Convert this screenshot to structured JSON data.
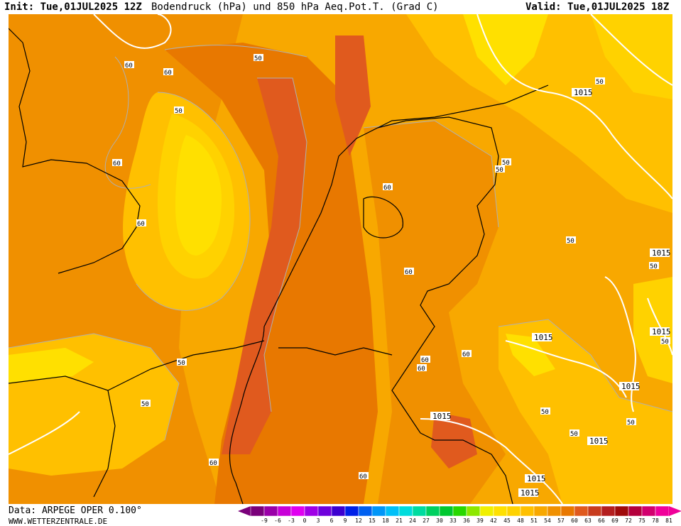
{
  "header": {
    "init": "Init: Tue,01JUL2025 12Z",
    "title": "Bodendruck (hPa) und 850 hPa Aeq.Pot.T. (Grad C)",
    "valid": "Valid: Tue,01JUL2025 18Z"
  },
  "footer": {
    "data_source": "Data: ARPEGE OPER 0.100°",
    "website": "WWW.WETTERZENTRALE.DE"
  },
  "map": {
    "isobar_labels": [
      "1015",
      "1015",
      "1015",
      "1015",
      "1015",
      "1015",
      "1015",
      "1015",
      "1015"
    ],
    "theta_labels": [
      "60",
      "60",
      "50",
      "60",
      "60",
      "50",
      "60",
      "60",
      "60",
      "60",
      "50",
      "50",
      "50",
      "60",
      "50",
      "50",
      "50",
      "50",
      "50",
      "50",
      "50",
      "60",
      "60",
      "50"
    ]
  },
  "scale": {
    "labels": [
      "-9",
      "-6",
      "-3",
      "0",
      "3",
      "6",
      "9",
      "12",
      "15",
      "18",
      "21",
      "24",
      "27",
      "30",
      "33",
      "36",
      "39",
      "42",
      "45",
      "48",
      "51",
      "54",
      "57",
      "60",
      "63",
      "66",
      "69",
      "72",
      "75",
      "78",
      "81"
    ],
    "colors": [
      "#7a007a",
      "#9a00a8",
      "#c800d8",
      "#e000f0",
      "#a000e6",
      "#6e00dc",
      "#3c00d0",
      "#0020e8",
      "#0060f0",
      "#0096f8",
      "#00c0f8",
      "#00dcdc",
      "#00dca0",
      "#00d060",
      "#00c830",
      "#28d800",
      "#8ce800",
      "#f0f000",
      "#ffe000",
      "#ffd200",
      "#ffc000",
      "#f8a800",
      "#f09000",
      "#e87800",
      "#e05a1e",
      "#c83c1e",
      "#b41e1e",
      "#a00a0a",
      "#b4003c",
      "#d2006e",
      "#f0009a"
    ],
    "left_arrow_color": "#7a007a",
    "right_arrow_color": "#f0009a"
  },
  "colors": {
    "band_45": "#ffe000",
    "band_48": "#ffd200",
    "band_51": "#ffc000",
    "band_54": "#f8a800",
    "band_57": "#f09000",
    "band_60": "#e87800",
    "band_63": "#e05a1e",
    "coast": "#000000",
    "isobar": "#ffffff",
    "theta_contour": "#b0b0b0"
  }
}
